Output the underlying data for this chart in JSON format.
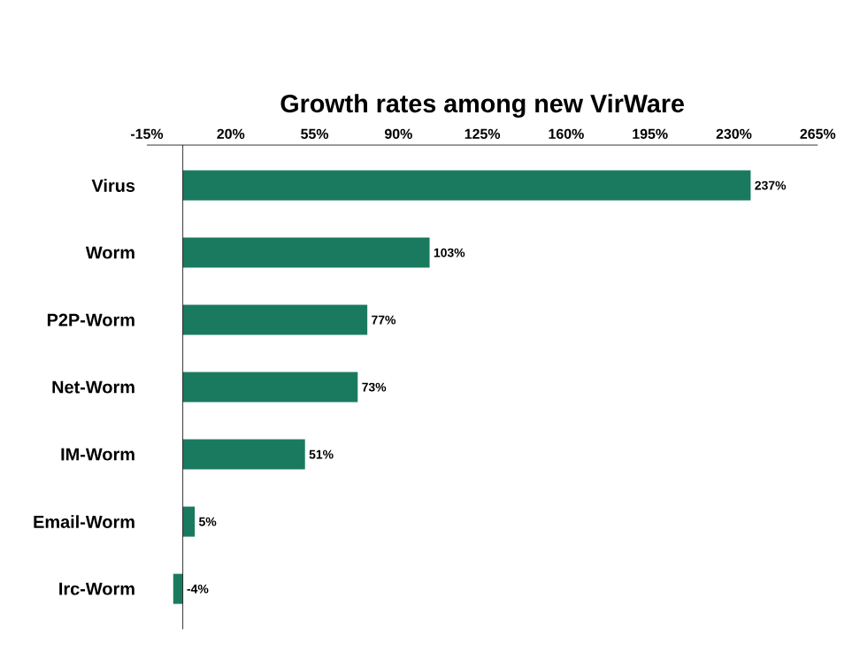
{
  "chart_data": {
    "type": "bar",
    "orientation": "horizontal",
    "title": "Growth rates among new VirWare",
    "categories": [
      "Virus",
      "Worm",
      "P2P-Worm",
      "Net-Worm",
      "IM-Worm",
      "Email-Worm",
      "Irc-Worm"
    ],
    "values": [
      237,
      103,
      77,
      73,
      51,
      5,
      -4
    ],
    "value_labels": [
      "237%",
      "103%",
      "77%",
      "73%",
      "51%",
      "5%",
      "-4%"
    ],
    "color": "#1a7a60",
    "xlim": [
      -15,
      265
    ],
    "xticks": [
      {
        "value": -15,
        "label": "-15%"
      },
      {
        "value": 20,
        "label": "20%"
      },
      {
        "value": 55,
        "label": "55%"
      },
      {
        "value": 90,
        "label": "90%"
      },
      {
        "value": 125,
        "label": "125%"
      },
      {
        "value": 160,
        "label": "160%"
      },
      {
        "value": 195,
        "label": "195%"
      },
      {
        "value": 230,
        "label": "230%"
      },
      {
        "value": 265,
        "label": "265%"
      }
    ],
    "grid": false
  }
}
